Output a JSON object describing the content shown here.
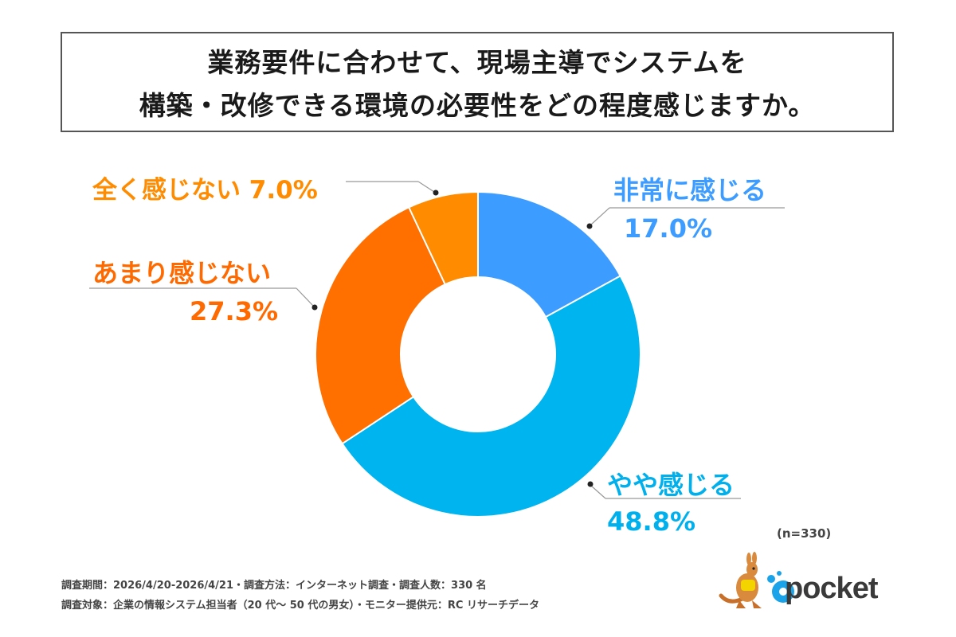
{
  "title": {
    "line1": "業務要件に合わせて、現場主導でシステムを",
    "line2": "構築・改修できる環境の必要性をどの程度感じますか。"
  },
  "chart_data": {
    "type": "pie",
    "donut": true,
    "categories": [
      "非常に感じる",
      "やや感じる",
      "あまり感じない",
      "全く感じない"
    ],
    "values": [
      17.0,
      48.8,
      27.3,
      7.0
    ],
    "value_labels": [
      "17.0%",
      "48.8%",
      "27.3%",
      "7.0%"
    ],
    "colors": [
      "#3d9cff",
      "#00b4ef",
      "#ff7000",
      "#ff8c00"
    ],
    "label_colors": [
      "#3d9cff",
      "#00b0ec",
      "#ff6a00",
      "#ff8c00"
    ],
    "start_angle": "top",
    "direction": "clockwise"
  },
  "sample_size": "(n=330)",
  "footer": {
    "line1": "調査期間：2026/4/20-2026/4/21・調査方法：インターネット調査・調査人数：330 名",
    "line2": "調査対象：企業の情報システム担当者（20 代～ 50 代の男女）・モニター提供元：RC リサーチデータ"
  },
  "logo": {
    "text": "pocket",
    "at_sign": "@",
    "brand_color": "#1aa3e8",
    "mascot": "kangaroo-icon"
  }
}
